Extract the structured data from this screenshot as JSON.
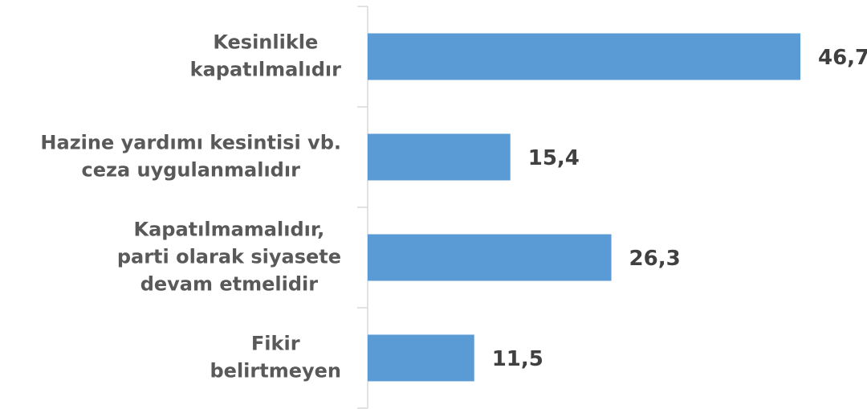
{
  "chart_data": {
    "type": "bar",
    "orientation": "horizontal",
    "categories": [
      "Kesinlikle\nkapatılmalıdır",
      "Hazine yardımı kesintisi vb.\nceza uygulanmalıdır",
      "Kapatılmamalıdır,\nparti olarak siyasete\ndevam etmelidir",
      "Fikir\nbelirtmeyen"
    ],
    "values": [
      46.7,
      15.4,
      26.3,
      11.5
    ],
    "value_labels": [
      "46,7",
      "15,4",
      "26,3",
      "11,5"
    ],
    "color": "#5b9bd5"
  }
}
